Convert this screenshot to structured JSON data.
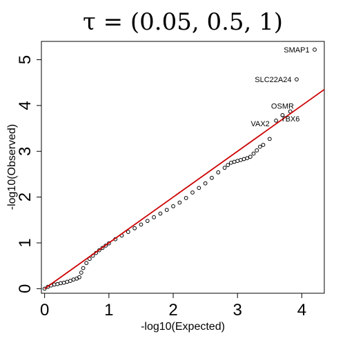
{
  "chart_data": {
    "type": "scatter",
    "title": "τ =  (0.05, 0.5, 1)",
    "xlabel": "-log10(Expected)",
    "ylabel": "-log10(Observed)",
    "xlim": [
      -0.05,
      4.35
    ],
    "ylim": [
      -0.1,
      5.4
    ],
    "x_ticks": [
      "0",
      "1",
      "2",
      "3",
      "4"
    ],
    "y_ticks": [
      "0",
      "1",
      "2",
      "3",
      "4",
      "5"
    ],
    "grid": false,
    "colors": {
      "points": "#000000",
      "reference_line": "#cc0000"
    },
    "reference_line": {
      "x": [
        0,
        4.35
      ],
      "y": [
        0,
        4.35
      ]
    },
    "points": [
      {
        "x": 0.0,
        "y": 0.0
      },
      {
        "x": 0.05,
        "y": 0.04
      },
      {
        "x": 0.1,
        "y": 0.07
      },
      {
        "x": 0.15,
        "y": 0.09
      },
      {
        "x": 0.2,
        "y": 0.1
      },
      {
        "x": 0.25,
        "y": 0.12
      },
      {
        "x": 0.3,
        "y": 0.13
      },
      {
        "x": 0.35,
        "y": 0.15
      },
      {
        "x": 0.4,
        "y": 0.17
      },
      {
        "x": 0.45,
        "y": 0.2
      },
      {
        "x": 0.5,
        "y": 0.22
      },
      {
        "x": 0.54,
        "y": 0.25
      },
      {
        "x": 0.57,
        "y": 0.35
      },
      {
        "x": 0.6,
        "y": 0.45
      },
      {
        "x": 0.65,
        "y": 0.56
      },
      {
        "x": 0.7,
        "y": 0.65
      },
      {
        "x": 0.75,
        "y": 0.72
      },
      {
        "x": 0.8,
        "y": 0.78
      },
      {
        "x": 0.85,
        "y": 0.84
      },
      {
        "x": 0.9,
        "y": 0.89
      },
      {
        "x": 0.95,
        "y": 0.94
      },
      {
        "x": 1.0,
        "y": 0.99
      },
      {
        "x": 1.1,
        "y": 1.08
      },
      {
        "x": 1.2,
        "y": 1.16
      },
      {
        "x": 1.3,
        "y": 1.24
      },
      {
        "x": 1.4,
        "y": 1.32
      },
      {
        "x": 1.5,
        "y": 1.4
      },
      {
        "x": 1.6,
        "y": 1.48
      },
      {
        "x": 1.7,
        "y": 1.56
      },
      {
        "x": 1.8,
        "y": 1.64
      },
      {
        "x": 1.9,
        "y": 1.72
      },
      {
        "x": 2.0,
        "y": 1.8
      },
      {
        "x": 2.1,
        "y": 1.88
      },
      {
        "x": 2.2,
        "y": 1.98
      },
      {
        "x": 2.3,
        "y": 2.1
      },
      {
        "x": 2.4,
        "y": 2.2
      },
      {
        "x": 2.5,
        "y": 2.3
      },
      {
        "x": 2.6,
        "y": 2.42
      },
      {
        "x": 2.7,
        "y": 2.54
      },
      {
        "x": 2.8,
        "y": 2.64
      },
      {
        "x": 2.85,
        "y": 2.7
      },
      {
        "x": 2.9,
        "y": 2.75
      },
      {
        "x": 2.95,
        "y": 2.77
      },
      {
        "x": 3.0,
        "y": 2.79
      },
      {
        "x": 3.05,
        "y": 2.81
      },
      {
        "x": 3.1,
        "y": 2.83
      },
      {
        "x": 3.15,
        "y": 2.85
      },
      {
        "x": 3.2,
        "y": 2.88
      },
      {
        "x": 3.25,
        "y": 2.95
      },
      {
        "x": 3.3,
        "y": 3.02
      },
      {
        "x": 3.35,
        "y": 3.1
      },
      {
        "x": 3.4,
        "y": 3.14
      },
      {
        "x": 3.5,
        "y": 3.27
      },
      {
        "x": 3.6,
        "y": 3.67
      },
      {
        "x": 3.7,
        "y": 3.79
      },
      {
        "x": 3.82,
        "y": 3.87
      },
      {
        "x": 3.92,
        "y": 4.57
      },
      {
        "x": 4.2,
        "y": 5.22
      }
    ],
    "annotations": [
      {
        "text": "SMAP1",
        "x": 4.2,
        "y": 5.22,
        "anchor": "end",
        "dx": -0.08,
        "dy": 0
      },
      {
        "text": "SLC22A24",
        "x": 3.92,
        "y": 4.57,
        "anchor": "end",
        "dx": -0.08,
        "dy": 0
      },
      {
        "text": "OSMR",
        "x": 3.7,
        "y": 3.79,
        "anchor": "middle",
        "dx": 0.0,
        "dy": 0.2
      },
      {
        "text": "TBX6",
        "x": 3.82,
        "y": 3.87,
        "anchor": "middle",
        "dx": 0.0,
        "dy": -0.16
      },
      {
        "text": "VAX2",
        "x": 3.6,
        "y": 3.67,
        "anchor": "end",
        "dx": -0.1,
        "dy": -0.06
      }
    ]
  }
}
